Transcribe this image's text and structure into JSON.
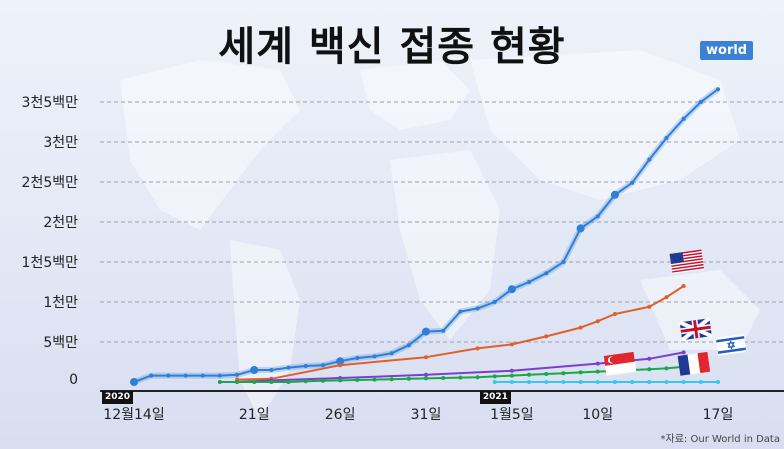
{
  "title": "세계 백신 접종 현황",
  "source": "*자료: Our World in Data",
  "colors": {
    "world": "#2f7fd8",
    "usa": "#e0602a",
    "uk": "#7a3fd0",
    "israel": "#18a84a",
    "singapore": "#35c8f0"
  },
  "chart_data": {
    "type": "line",
    "title": "세계 백신 접종 현황",
    "xlabel": "",
    "ylabel": "",
    "ylim": [
      0,
      38000000
    ],
    "y_ticks": [
      {
        "value": 0,
        "label": "0"
      },
      {
        "value": 5000000,
        "label": "5백만"
      },
      {
        "value": 10000000,
        "label": "1천만"
      },
      {
        "value": 15000000,
        "label": "1천5백만"
      },
      {
        "value": 20000000,
        "label": "2천만"
      },
      {
        "value": 25000000,
        "label": "2천5백만"
      },
      {
        "value": 30000000,
        "label": "3천만"
      },
      {
        "value": 35000000,
        "label": "3천5백만"
      }
    ],
    "x_ticks": [
      {
        "day": 0,
        "label": "12월14일",
        "year": "2020"
      },
      {
        "day": 7,
        "label": "21일"
      },
      {
        "day": 12,
        "label": "26일"
      },
      {
        "day": 17,
        "label": "31일"
      },
      {
        "day": 22,
        "label": "1월5일",
        "year": "2021"
      },
      {
        "day": 27,
        "label": "10일"
      },
      {
        "day": 34,
        "label": "17일"
      }
    ],
    "grid": true,
    "series": [
      {
        "name": "world",
        "key": "world",
        "x": [
          0,
          1,
          2,
          3,
          4,
          5,
          6,
          7,
          8,
          9,
          10,
          11,
          12,
          13,
          14,
          15,
          16,
          17,
          18,
          19,
          20,
          21,
          22,
          23,
          24,
          25,
          26,
          27,
          28,
          29,
          30,
          31,
          32,
          33,
          34
        ],
        "values": [
          0,
          800000,
          800000,
          800000,
          800000,
          800000,
          900000,
          1500000,
          1500000,
          1800000,
          2000000,
          2100000,
          2600000,
          3000000,
          3200000,
          3600000,
          4600000,
          6300000,
          6400000,
          8800000,
          9200000,
          10000000,
          11600000,
          12500000,
          13600000,
          15000000,
          19200000,
          20700000,
          23400000,
          24900000,
          27800000,
          30500000,
          32900000,
          35000000,
          36600000
        ],
        "markers": [
          0,
          7,
          12,
          17,
          22,
          26,
          28
        ]
      },
      {
        "name": "usa",
        "key": "usa",
        "x": [
          6,
          8,
          12,
          17,
          20,
          22,
          24,
          26,
          27,
          28,
          30,
          31,
          32
        ],
        "values": [
          300000,
          400000,
          2100000,
          3100000,
          4200000,
          4700000,
          5700000,
          6800000,
          7600000,
          8500000,
          9400000,
          10600000,
          12000000
        ]
      },
      {
        "name": "uk",
        "key": "uk",
        "x": [
          6,
          8,
          12,
          17,
          22,
          27,
          30,
          32
        ],
        "values": [
          0,
          200000,
          500000,
          900000,
          1400000,
          2300000,
          2900000,
          3700000
        ]
      },
      {
        "name": "israel",
        "key": "israel",
        "x": [
          5,
          6,
          7,
          8,
          9,
          10,
          11,
          12,
          13,
          14,
          15,
          16,
          17,
          18,
          19,
          20,
          21,
          22,
          23,
          24,
          25,
          26,
          27,
          28,
          29,
          30,
          31,
          32
        ],
        "values": [
          0,
          0,
          0,
          0,
          0,
          100000,
          150000,
          200000,
          250000,
          300000,
          350000,
          400000,
          450000,
          500000,
          550000,
          600000,
          700000,
          800000,
          900000,
          1000000,
          1100000,
          1200000,
          1300000,
          1400000,
          1500000,
          1600000,
          1700000,
          1900000
        ]
      },
      {
        "name": "singapore",
        "key": "singapore",
        "x": [
          21,
          22,
          23,
          24,
          25,
          26,
          27,
          28,
          29,
          30,
          31,
          32,
          33,
          34
        ],
        "values": [
          0,
          0,
          0,
          0,
          0,
          0,
          0,
          0,
          0,
          0,
          0,
          0,
          0,
          0
        ]
      }
    ]
  },
  "flags": [
    {
      "name": "us-flag",
      "series": "usa"
    },
    {
      "name": "uk-flag",
      "series": "uk"
    },
    {
      "name": "israel-flag",
      "series": "israel"
    },
    {
      "name": "singapore-flag",
      "series": "singapore"
    },
    {
      "name": "france-flag",
      "series": "israel"
    }
  ],
  "world_tag": "world"
}
